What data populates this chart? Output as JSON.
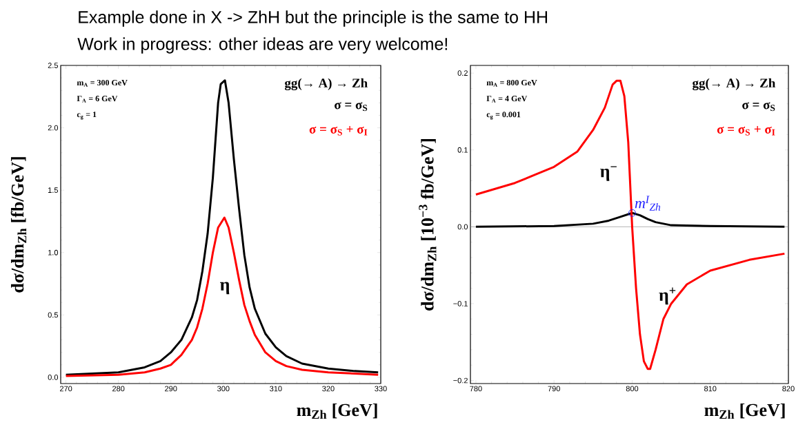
{
  "chart_data": [
    {
      "type": "line",
      "title": "Example done in X -> ZhH but the principle is the same to HH",
      "subtitle": "Work in progress: other ideas are very welcome!",
      "xlabel": "m$_{Zh}$ [GeV]",
      "ylabel": "dσ/dm$_{Zh}$ [fb/GeV]",
      "legend_title": "gg(→ A) → Zh",
      "legend": "top right",
      "grid": false,
      "xlim": [
        269,
        330
      ],
      "ylim": [
        -0.05,
        2.5
      ],
      "xticks": [
        270,
        280,
        290,
        300,
        310,
        320,
        330
      ],
      "yticks": [
        {
          "value": 0,
          "label": "0.0"
        },
        {
          "value": 0.5,
          "label": "0.5"
        },
        {
          "value": 1,
          "label": "1.0"
        },
        {
          "value": 1.5,
          "label": "1.5"
        },
        {
          "value": 2,
          "label": "2.0"
        },
        {
          "value": 2.5,
          "label": "2.5"
        }
      ],
      "annotations": [
        "m$_{A}$ = 300 GeV",
        "Γ$_{A}$ = 6 GeV",
        "c$_{g}$ = 1",
        "η"
      ],
      "series": [
        {
          "name": "σ = σ$_{S}$",
          "color": "#000000",
          "x": [
            270,
            280,
            285,
            288,
            290,
            292,
            294,
            295,
            296,
            297,
            298,
            299,
            299.5,
            300.3,
            301,
            302,
            303,
            304,
            305,
            306,
            308,
            310,
            312,
            315,
            320,
            325,
            329.5
          ],
          "values": [
            0.02,
            0.04,
            0.08,
            0.13,
            0.2,
            0.3,
            0.48,
            0.62,
            0.85,
            1.15,
            1.6,
            2.2,
            2.35,
            2.38,
            2.2,
            1.75,
            1.35,
            0.98,
            0.72,
            0.55,
            0.35,
            0.24,
            0.17,
            0.11,
            0.07,
            0.05,
            0.04
          ]
        },
        {
          "name": "σ = σ$_{S}$ + σ$_{I}$",
          "color": "#ff0000",
          "x": [
            270,
            280,
            285,
            288,
            290,
            292,
            294,
            295,
            296,
            297,
            298,
            299,
            300.2,
            301,
            302,
            303,
            304,
            305,
            306,
            308,
            310,
            312,
            315,
            320,
            325,
            329.5
          ],
          "values": [
            0.01,
            0.02,
            0.04,
            0.07,
            0.1,
            0.18,
            0.3,
            0.4,
            0.55,
            0.75,
            1.0,
            1.2,
            1.28,
            1.2,
            1.0,
            0.78,
            0.58,
            0.45,
            0.34,
            0.2,
            0.13,
            0.09,
            0.06,
            0.04,
            0.03,
            0.02
          ]
        }
      ]
    },
    {
      "type": "line",
      "xlabel": "m$_{Zh}$ [GeV]",
      "ylabel": "dσ/dm$_{Zh}$ [10$^{−3}$ fb/GeV]",
      "legend_title": "gg(→ A) → Zh",
      "legend": "top right",
      "grid": false,
      "xlim": [
        779.3,
        820
      ],
      "ylim": [
        -0.204,
        0.21
      ],
      "xticks": [
        780,
        790,
        800,
        810,
        820
      ],
      "yticks": [
        {
          "value": -0.2,
          "label": "−0.2"
        },
        {
          "value": -0.1,
          "label": "−0.1"
        },
        {
          "value": 0,
          "label": "0.0"
        },
        {
          "value": 0.1,
          "label": "0.1"
        },
        {
          "value": 0.2,
          "label": "0.2"
        }
      ],
      "ref_lines": [
        {
          "axis": "y",
          "value": 0,
          "color": "#808080"
        }
      ],
      "annotations": [
        "m$_{A}$ = 800 GeV",
        "Γ$_{A}$ = 4 GeV",
        "c$_{g}$ = 0.001",
        "η$^{−}$",
        "η$^{+}$"
      ],
      "series": [
        {
          "name": "σ = σ$_{S}$",
          "color": "#000000",
          "x": [
            780,
            790,
            795,
            797,
            798.5,
            800,
            801,
            802,
            803,
            805,
            810,
            819.5
          ],
          "values": [
            0.0,
            0.001,
            0.004,
            0.008,
            0.013,
            0.018,
            0.015,
            0.01,
            0.006,
            0.002,
            0.001,
            0.0
          ]
        },
        {
          "name": "σ = σ$_{S}$ + σ$_{I}$",
          "color": "#ff0000",
          "x": [
            780,
            785,
            790,
            793,
            795,
            796.5,
            797.5,
            798,
            798.5,
            799,
            799.5,
            800,
            800.5,
            801,
            801.5,
            802,
            802.3,
            803,
            804,
            805,
            807,
            810,
            815,
            819.5
          ],
          "values": [
            0.042,
            0.057,
            0.078,
            0.098,
            0.126,
            0.155,
            0.185,
            0.19,
            0.19,
            0.17,
            0.11,
            0.0,
            -0.08,
            -0.14,
            -0.175,
            -0.185,
            -0.185,
            -0.16,
            -0.12,
            -0.1,
            -0.075,
            -0.057,
            -0.043,
            -0.035
          ]
        },
        {
          "name": "m$^{I}$$_{Zh}$",
          "type": "scatter",
          "marker": "circle",
          "color": "#2020ff",
          "x": [
            800
          ],
          "values": [
            0.018
          ]
        }
      ]
    }
  ]
}
